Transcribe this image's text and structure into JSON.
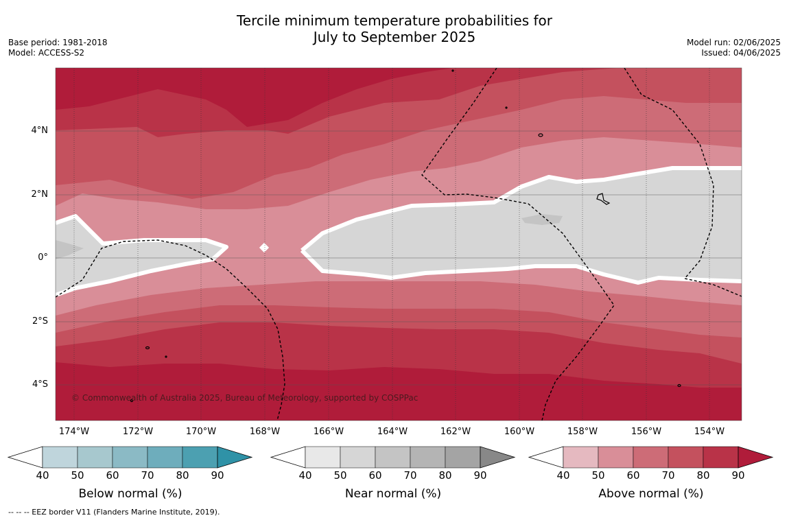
{
  "title_line1": "Tercile minimum temperature probabilities for",
  "title_line2": "July to September 2025",
  "base_period": "Base period: 1981-2018",
  "model": "Model: ACCESS-S2",
  "model_run": "Model run: 02/06/2025",
  "issued": "Issued: 04/06/2025",
  "copyright": "© Commonwealth of Australia 2025, Bureau of Meteorology, supported by COSPPac",
  "footnote": "--  --  -- EEZ border V11 (Flanders Marine Institute, 2019).",
  "axes": {
    "lat_ticks": [
      "4°N",
      "2°N",
      "0°",
      "2°S",
      "4°S"
    ],
    "lon_ticks": [
      "174°W",
      "172°W",
      "170°W",
      "168°W",
      "166°W",
      "164°W",
      "162°W",
      "160°W",
      "158°W",
      "156°W",
      "154°W"
    ]
  },
  "colorbars": [
    {
      "title": "Below normal (%)",
      "levels": [
        "40",
        "50",
        "60",
        "70",
        "80",
        "90"
      ],
      "colors": [
        "#bfd5dc",
        "#a7c8ce",
        "#8bbac5",
        "#6eadbc",
        "#4ca0b1",
        "#2f92a7"
      ]
    },
    {
      "title": "Near normal (%)",
      "levels": [
        "40",
        "50",
        "60",
        "70",
        "80",
        "90"
      ],
      "colors": [
        "#e8e8e8",
        "#d6d6d6",
        "#c4c4c4",
        "#b4b4b4",
        "#a4a4a4",
        "#888888"
      ]
    },
    {
      "title": "Above normal (%)",
      "levels": [
        "40",
        "50",
        "60",
        "70",
        "80",
        "90"
      ],
      "colors": [
        "#e5b9c0",
        "#d98e98",
        "#cd6c77",
        "#c4515e",
        "#b93348",
        "#b01c3a"
      ]
    }
  ]
}
